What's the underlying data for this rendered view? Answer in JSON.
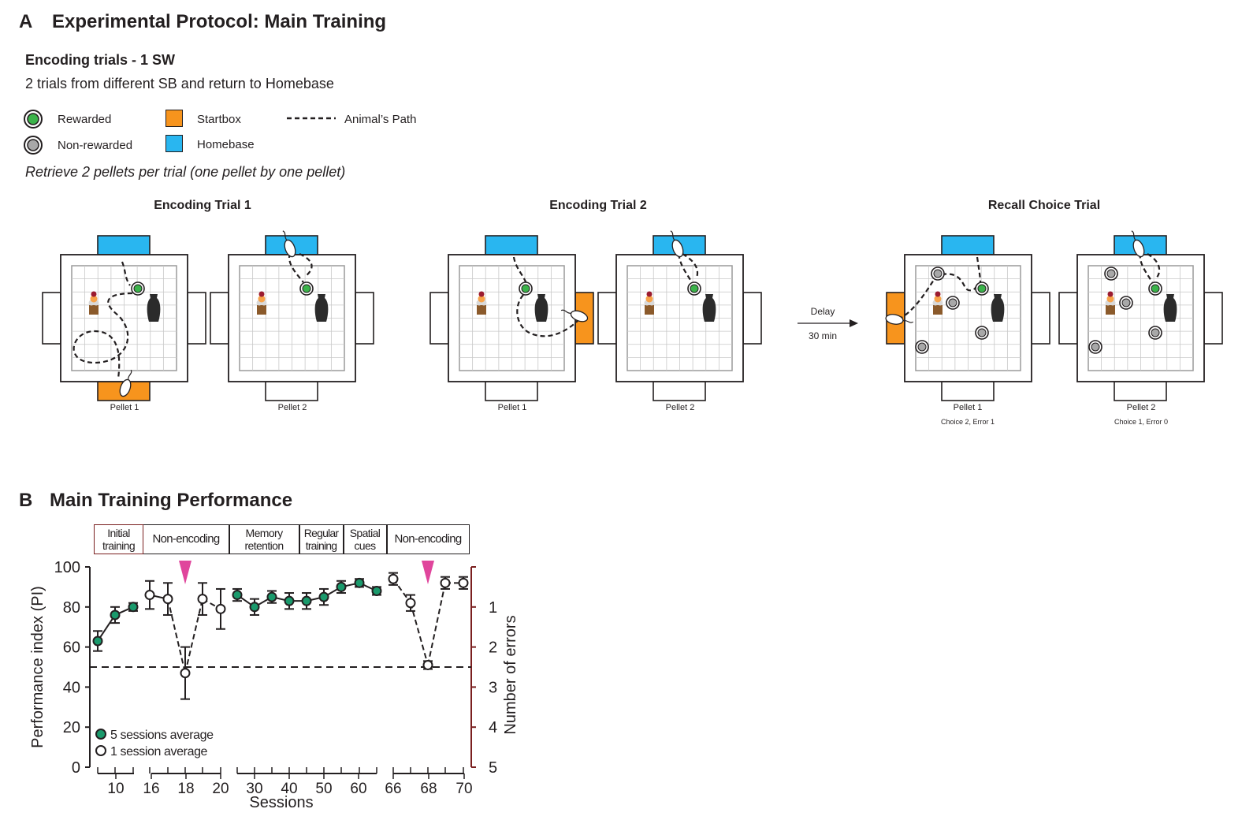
{
  "panel_a": {
    "letter": "A",
    "title": "Experimental Protocol: Main Training",
    "encoding_heading": "Encoding trials - 1 SW",
    "encoding_desc": "2 trials from different SB and return to Homebase",
    "legend": {
      "rewarded": "Rewarded",
      "non_rewarded": "Non-rewarded",
      "startbox": "Startbox",
      "homebase": "Homebase",
      "path": "Animal’s Path"
    },
    "retrieve_note": "Retrieve 2 pellets per trial (one pellet by one pellet)",
    "trial_titles": [
      "Encoding Trial 1",
      "Encoding Trial 2",
      "Recall Choice Trial"
    ],
    "arenas": [
      {
        "label": "Pellet 1",
        "sub": ""
      },
      {
        "label": "Pellet 2",
        "sub": ""
      },
      {
        "label": "Pellet 1",
        "sub": ""
      },
      {
        "label": "Pellet 2",
        "sub": ""
      },
      {
        "label": "Pellet 1",
        "sub": "Choice 2, Error 1"
      },
      {
        "label": "Pellet 2",
        "sub": "Choice 1, Error 0"
      }
    ],
    "delay_label": "Delay",
    "delay_value": "30 min"
  },
  "panel_b": {
    "letter": "B",
    "title": "Main Training Performance",
    "phases": [
      {
        "l1": "Initial",
        "l2": "training"
      },
      {
        "l1": "Non-encoding",
        "l2": ""
      },
      {
        "l1": "Memory",
        "l2": "retention"
      },
      {
        "l1": "Regular",
        "l2": "training"
      },
      {
        "l1": "Spatial",
        "l2": "cues"
      },
      {
        "l1": "Non-encoding",
        "l2": ""
      }
    ]
  },
  "chart_data": {
    "type": "line",
    "title": "Main Training Performance",
    "xlabel": "Sessions",
    "ylabel": "Performance index (PI)",
    "y2label": "Number of errors",
    "ylim": [
      0,
      100
    ],
    "y2lim": [
      5,
      0
    ],
    "yticks": [
      0,
      20,
      40,
      60,
      80,
      100
    ],
    "y2ticks": [
      1,
      2,
      3,
      4,
      5
    ],
    "chance_level": 50,
    "x_segments": [
      {
        "ticks": [
          "10"
        ],
        "points": [
          {
            "pi": 63,
            "err": 5,
            "type": "five"
          },
          {
            "pi": 76,
            "err": 4,
            "type": "five"
          },
          {
            "pi": 80,
            "err": 2,
            "type": "five"
          }
        ]
      },
      {
        "ticks": [
          "16",
          "18",
          "20"
        ],
        "points": [
          {
            "pi": 86,
            "err": 7,
            "type": "one"
          },
          {
            "pi": 84,
            "err": 8,
            "type": "one"
          },
          {
            "pi": 47,
            "err": 13,
            "type": "one",
            "marker": true
          },
          {
            "pi": 84,
            "err": 8,
            "type": "one"
          },
          {
            "pi": 79,
            "err": 10,
            "type": "one"
          }
        ]
      },
      {
        "ticks": [
          "30",
          "40",
          "50",
          "60"
        ],
        "points": [
          {
            "pi": 86,
            "err": 3,
            "type": "five"
          },
          {
            "pi": 80,
            "err": 4,
            "type": "five"
          },
          {
            "pi": 85,
            "err": 3,
            "type": "five"
          },
          {
            "pi": 83,
            "err": 4,
            "type": "five"
          },
          {
            "pi": 83,
            "err": 4,
            "type": "five"
          },
          {
            "pi": 85,
            "err": 4,
            "type": "five"
          },
          {
            "pi": 90,
            "err": 3,
            "type": "five"
          },
          {
            "pi": 92,
            "err": 2,
            "type": "five"
          },
          {
            "pi": 88,
            "err": 2,
            "type": "five"
          }
        ]
      },
      {
        "ticks": [
          "66",
          "68",
          "70"
        ],
        "points": [
          {
            "pi": 94,
            "err": 3,
            "type": "one"
          },
          {
            "pi": 82,
            "err": 4,
            "type": "one"
          },
          {
            "pi": 51,
            "err": 2,
            "type": "one",
            "marker": true
          },
          {
            "pi": 92,
            "err": 3,
            "type": "one"
          },
          {
            "pi": 92,
            "err": 3,
            "type": "one"
          }
        ]
      }
    ],
    "legend": [
      {
        "label": "5 sessions average",
        "color": "#1a9a6c"
      },
      {
        "label": "1 session average",
        "color": "#ffffff"
      }
    ],
    "colors": {
      "rewarded": "#3bb34a",
      "non_rewarded": "#a8a8a8",
      "startbox": "#f7941d",
      "homebase": "#29b6f0",
      "marker": "#e0459c",
      "five_session": "#1a9a6c",
      "right_axis": "#7a1f1f"
    }
  }
}
